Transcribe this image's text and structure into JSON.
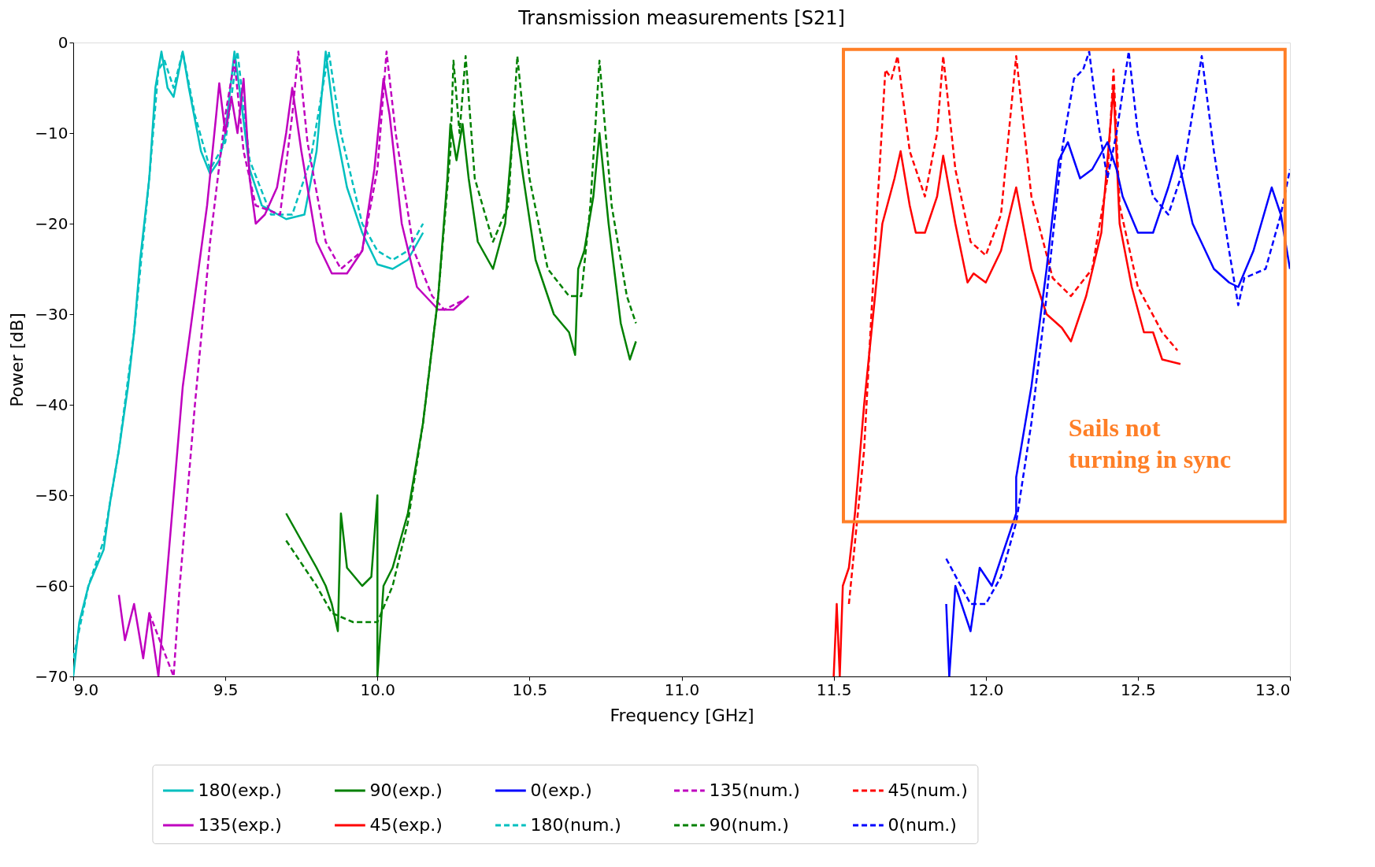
{
  "chart_data": {
    "type": "line",
    "title": "Transmission measurements [S21]",
    "xlabel": "Frequency [GHz]",
    "ylabel": "Power [dB]",
    "xlim": [
      9.0,
      13.0
    ],
    "xticks": [
      {
        "value": 9,
        "label": "9.0"
      },
      9.5,
      {
        "value": 10,
        "label": "10.0"
      },
      10.5,
      {
        "value": 11,
        "label": "11.0"
      },
      11.5,
      {
        "value": 12,
        "label": "12.0"
      },
      12.5,
      {
        "value": 13,
        "label": "13.0"
      }
    ],
    "ylim": [
      -70,
      0
    ],
    "yticks": [
      -70,
      -60,
      -50,
      -40,
      -30,
      -20,
      -10,
      0
    ],
    "grid": false,
    "legend": "bottom",
    "annotations": [
      "Sails not turning in sync"
    ],
    "series": [
      {
        "name": "180(exp.)",
        "color": "#00bfbf",
        "line_style": "solid",
        "x": [
          9.0,
          9.02,
          9.05,
          9.1,
          9.12,
          9.15,
          9.18,
          9.2,
          9.22,
          9.25,
          9.27,
          9.29,
          9.31,
          9.33,
          9.36,
          9.38,
          9.42,
          9.45,
          9.48,
          9.5,
          9.52,
          9.53,
          9.55,
          9.58,
          9.62,
          9.7,
          9.76,
          9.8,
          9.83,
          9.86,
          9.9,
          9.95,
          10.0,
          10.05,
          10.1,
          10.15
        ],
        "values": [
          -70,
          -64,
          -60,
          -56,
          -51,
          -45,
          -38,
          -32,
          -24,
          -15,
          -5,
          -1,
          -5,
          -6,
          -1,
          -5,
          -12,
          -14.5,
          -13,
          -10,
          -4,
          -1,
          -6,
          -14,
          -18,
          -19.5,
          -19,
          -12,
          -1,
          -9,
          -16,
          -21,
          -24.5,
          -25,
          -24,
          -21
        ]
      },
      {
        "name": "180(num.)",
        "color": "#00bfbf",
        "line_style": "dashed",
        "x": [
          9.0,
          9.05,
          9.1,
          9.15,
          9.2,
          9.25,
          9.28,
          9.3,
          9.33,
          9.36,
          9.4,
          9.45,
          9.5,
          9.54,
          9.58,
          9.65,
          9.72,
          9.78,
          9.84,
          9.88,
          9.95,
          10.0,
          10.05,
          10.1,
          10.15
        ],
        "values": [
          -68,
          -60,
          -55,
          -45,
          -32,
          -15,
          -3,
          -2,
          -5,
          -1,
          -8,
          -14,
          -11,
          -1,
          -13,
          -19,
          -19,
          -13,
          -1,
          -10,
          -20,
          -23,
          -24,
          -23,
          -20
        ]
      },
      {
        "name": "135(exp.)",
        "color": "#bf00bf",
        "line_style": "solid",
        "x": [
          9.15,
          9.17,
          9.2,
          9.23,
          9.25,
          9.28,
          9.3,
          9.33,
          9.36,
          9.4,
          9.44,
          9.47,
          9.48,
          9.5,
          9.52,
          9.54,
          9.56,
          9.58,
          9.6,
          9.63,
          9.67,
          9.7,
          9.72,
          9.75,
          9.8,
          9.85,
          9.9,
          9.95,
          9.99,
          10.02,
          10.04,
          10.08,
          10.13,
          10.2,
          10.25,
          10.3
        ],
        "values": [
          -61,
          -66,
          -62,
          -68,
          -63,
          -70,
          -62,
          -50,
          -38,
          -28,
          -18,
          -8,
          -4.5,
          -10,
          -6,
          -10,
          -4,
          -15,
          -20,
          -19,
          -16,
          -10,
          -5,
          -12,
          -22,
          -25.5,
          -25.5,
          -23,
          -14,
          -4,
          -8,
          -20,
          -27,
          -29.5,
          -29.5,
          -28
        ]
      },
      {
        "name": "135(num.)",
        "color": "#bf00bf",
        "line_style": "dashed",
        "x": [
          9.25,
          9.33,
          9.35,
          9.4,
          9.45,
          9.5,
          9.53,
          9.56,
          9.6,
          9.68,
          9.72,
          9.74,
          9.77,
          9.83,
          9.88,
          9.95,
          10.0,
          10.03,
          10.06,
          10.12,
          10.18,
          10.22,
          10.28
        ],
        "values": [
          -63,
          -70,
          -60,
          -40,
          -22,
          -8,
          -2,
          -12,
          -18,
          -19,
          -8,
          -1,
          -11,
          -22,
          -25,
          -23,
          -14,
          -1,
          -10,
          -23,
          -28,
          -29.5,
          -28.5
        ]
      },
      {
        "name": "90(exp.)",
        "color": "#008000",
        "line_style": "solid",
        "x": [
          9.7,
          9.75,
          9.8,
          9.83,
          9.85,
          9.87,
          9.88,
          9.9,
          9.95,
          9.98,
          10.0,
          10.0,
          10.02,
          10.05,
          10.1,
          10.15,
          10.2,
          10.23,
          10.24,
          10.26,
          10.28,
          10.3,
          10.33,
          10.38,
          10.42,
          10.45,
          10.48,
          10.52,
          10.58,
          10.63,
          10.65,
          10.66,
          10.68,
          10.71,
          10.73,
          10.76,
          10.8,
          10.83,
          10.85
        ],
        "values": [
          -52,
          -55,
          -58,
          -60,
          -62,
          -65,
          -52,
          -58,
          -60,
          -59,
          -50,
          -70,
          -60,
          -58,
          -52,
          -42,
          -28,
          -15,
          -9,
          -13,
          -9,
          -15,
          -22,
          -25,
          -20,
          -8,
          -15,
          -24,
          -30,
          -32,
          -34.5,
          -25,
          -23,
          -17,
          -10,
          -20,
          -31,
          -35,
          -33
        ]
      },
      {
        "name": "90(num.)",
        "color": "#008000",
        "line_style": "dashed",
        "x": [
          9.7,
          9.8,
          9.85,
          9.92,
          10.0,
          10.05,
          10.1,
          10.15,
          10.2,
          10.24,
          10.25,
          10.27,
          10.29,
          10.32,
          10.38,
          10.43,
          10.46,
          10.5,
          10.56,
          10.63,
          10.67,
          10.7,
          10.73,
          10.77,
          10.82,
          10.85
        ],
        "values": [
          -55,
          -60,
          -63,
          -64,
          -64,
          -60,
          -53,
          -42,
          -28,
          -12,
          -2,
          -10,
          -1.5,
          -15,
          -22,
          -18,
          -1.5,
          -15,
          -25,
          -28,
          -28,
          -18,
          -2,
          -18,
          -28,
          -31
        ]
      },
      {
        "name": "45(exp.)",
        "color": "#ff0000",
        "line_style": "solid",
        "x": [
          11.5,
          11.51,
          11.52,
          11.53,
          11.55,
          11.57,
          11.6,
          11.63,
          11.66,
          11.7,
          11.72,
          11.75,
          11.77,
          11.8,
          11.84,
          11.86,
          11.9,
          11.94,
          11.96,
          12.0,
          12.05,
          12.1,
          12.15,
          12.2,
          12.25,
          12.28,
          12.33,
          12.38,
          12.42,
          12.44,
          12.48,
          12.52,
          12.55,
          12.58,
          12.64
        ],
        "values": [
          -70,
          -62,
          -70,
          -60,
          -58,
          -52,
          -40,
          -30,
          -20,
          -15,
          -12,
          -18,
          -21,
          -21,
          -17,
          -12.5,
          -20,
          -26.5,
          -25.5,
          -26.5,
          -23,
          -16,
          -25,
          -30,
          -31.5,
          -33,
          -28,
          -21,
          -5,
          -20,
          -27,
          -32,
          -32,
          -35,
          -35.5
        ]
      },
      {
        "name": "45(num.)",
        "color": "#ff0000",
        "line_style": "dashed",
        "x": [
          11.55,
          11.6,
          11.64,
          11.67,
          11.69,
          11.71,
          11.75,
          11.8,
          11.84,
          11.86,
          11.9,
          11.95,
          12.0,
          12.05,
          12.1,
          12.15,
          12.22,
          12.28,
          12.35,
          12.4,
          12.42,
          12.44,
          12.5,
          12.58,
          12.63
        ],
        "values": [
          -62,
          -45,
          -20,
          -3,
          -4,
          -1.5,
          -12,
          -17,
          -10,
          -1.5,
          -14,
          -22,
          -23.5,
          -19,
          -1.5,
          -17,
          -26,
          -28,
          -25,
          -15,
          -3,
          -18,
          -27,
          -32,
          -34
        ]
      },
      {
        "name": "0(exp.)",
        "color": "#0000ff",
        "line_style": "solid",
        "x": [
          11.87,
          11.88,
          11.9,
          11.95,
          11.98,
          12.02,
          12.05,
          12.1,
          12.1,
          12.15,
          12.2,
          12.24,
          12.27,
          12.31,
          12.35,
          12.4,
          12.43,
          12.45,
          12.5,
          12.55,
          12.6,
          12.63,
          12.68,
          12.75,
          12.8,
          12.83,
          12.88,
          12.94,
          12.97,
          13.0
        ],
        "values": [
          -62,
          -70,
          -60,
          -65,
          -58,
          -60,
          -57,
          -52,
          -48,
          -38,
          -25,
          -13,
          -11,
          -15,
          -14,
          -11,
          -14,
          -17,
          -21,
          -21,
          -16,
          -12.5,
          -20,
          -25,
          -26.5,
          -27,
          -23,
          -16,
          -19,
          -25
        ]
      },
      {
        "name": "0(num.)",
        "color": "#0000ff",
        "line_style": "dashed",
        "x": [
          11.87,
          11.95,
          12.0,
          12.05,
          12.1,
          12.15,
          12.2,
          12.25,
          12.29,
          12.32,
          12.34,
          12.37,
          12.4,
          12.43,
          12.47,
          12.5,
          12.55,
          12.6,
          12.65,
          12.71,
          12.75,
          12.8,
          12.83,
          12.85,
          12.92,
          12.97,
          13.0
        ],
        "values": [
          -57,
          -62,
          -62,
          -59,
          -53,
          -42,
          -28,
          -12,
          -4,
          -3,
          -1,
          -9,
          -15,
          -10,
          -1,
          -10,
          -17,
          -19,
          -14,
          -1.5,
          -12,
          -23,
          -29,
          -26,
          -25,
          -19,
          -14
        ]
      }
    ]
  }
}
